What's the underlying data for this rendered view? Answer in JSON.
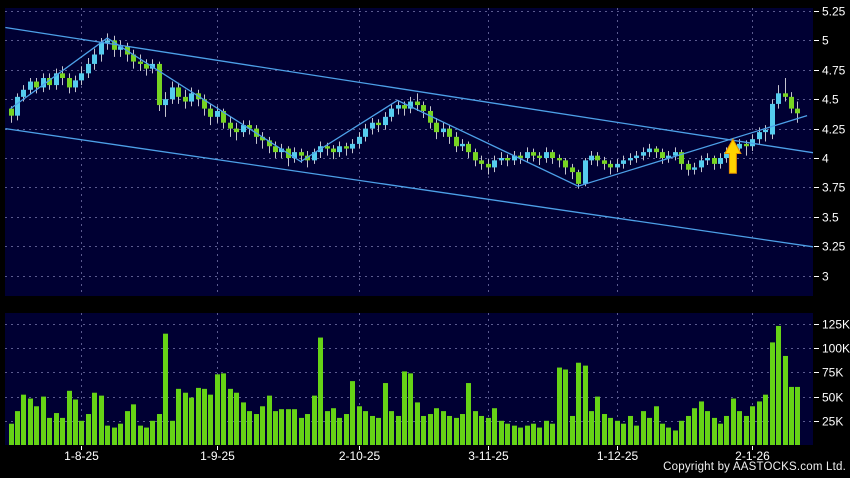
{
  "footer": {
    "copyright": "Copyright by AASTOCKS.com Ltd."
  },
  "colors": {
    "background": "#000000",
    "panel": "#000033",
    "grid": "#5B5B8F",
    "up_candle": "#55CCEE",
    "down_candle": "#77D422",
    "volume_bar": "#66D316",
    "wick": "#C4C4CE",
    "trendline": "#4DA0E8",
    "label": "#FFFFFF",
    "arrow_fill": "#FFD400",
    "arrow_edge": "#E89000"
  },
  "chart_data": {
    "type": "candlestick+volume",
    "title": "",
    "legend": false,
    "grid": "dashed",
    "price_axis": {
      "side": "right",
      "range": [
        2.83,
        5.28
      ],
      "ticks": [
        {
          "label": "5.25",
          "value": 5.25
        },
        {
          "label": "5",
          "value": 5.0
        },
        {
          "label": "4.75",
          "value": 4.75
        },
        {
          "label": "4.5",
          "value": 4.5
        },
        {
          "label": "4.25",
          "value": 4.25
        },
        {
          "label": "4",
          "value": 4.0
        },
        {
          "label": "3.75",
          "value": 3.75
        },
        {
          "label": "3.5",
          "value": 3.5
        },
        {
          "label": "3.25",
          "value": 3.25
        },
        {
          "label": "3",
          "value": 3.0
        }
      ]
    },
    "volume_axis": {
      "side": "right",
      "unit": "K",
      "max_k": 136,
      "ticks": [
        {
          "label": "125K",
          "value": 125
        },
        {
          "label": "100K",
          "value": 100
        },
        {
          "label": "75K",
          "value": 75
        },
        {
          "label": "50K",
          "value": 50
        },
        {
          "label": "25K",
          "value": 25
        }
      ]
    },
    "x_axis": {
      "months": [
        {
          "label": "1-8-25",
          "day": 11
        },
        {
          "label": "1-9-25",
          "day": 32
        },
        {
          "label": "2-10-25",
          "day": 54
        },
        {
          "label": "3-11-25",
          "day": 74
        },
        {
          "label": "1-12-25",
          "day": 94
        },
        {
          "label": "2-1-26",
          "day": 115
        }
      ]
    },
    "candles_format": "[open, high, low, close, volume_thousands]",
    "candles": [
      [
        4.42,
        4.44,
        4.3,
        4.36,
        22
      ],
      [
        4.36,
        4.55,
        4.32,
        4.52,
        35
      ],
      [
        4.52,
        4.62,
        4.48,
        4.58,
        52
      ],
      [
        4.58,
        4.68,
        4.54,
        4.65,
        48
      ],
      [
        4.65,
        4.68,
        4.55,
        4.6,
        40
      ],
      [
        4.6,
        4.72,
        4.56,
        4.68,
        50
      ],
      [
        4.68,
        4.72,
        4.58,
        4.62,
        28
      ],
      [
        4.62,
        4.76,
        4.58,
        4.72,
        33
      ],
      [
        4.72,
        4.78,
        4.62,
        4.68,
        28
      ],
      [
        4.68,
        4.72,
        4.55,
        4.6,
        56
      ],
      [
        4.6,
        4.7,
        4.56,
        4.66,
        47
      ],
      [
        4.66,
        4.78,
        4.62,
        4.72,
        25
      ],
      [
        4.72,
        4.85,
        4.68,
        4.8,
        32
      ],
      [
        4.8,
        4.93,
        4.75,
        4.88,
        54
      ],
      [
        4.88,
        5.02,
        4.82,
        4.98,
        51
      ],
      [
        4.98,
        5.06,
        4.92,
        5.0,
        20
      ],
      [
        5.0,
        5.04,
        4.86,
        4.92,
        18
      ],
      [
        4.92,
        5.0,
        4.86,
        4.95,
        22
      ],
      [
        4.95,
        4.98,
        4.82,
        4.88,
        35
      ],
      [
        4.88,
        4.92,
        4.76,
        4.82,
        42
      ],
      [
        4.82,
        4.88,
        4.74,
        4.8,
        20
      ],
      [
        4.8,
        4.84,
        4.7,
        4.76,
        18
      ],
      [
        4.76,
        4.84,
        4.72,
        4.8,
        25
      ],
      [
        4.8,
        4.82,
        4.4,
        4.45,
        32
      ],
      [
        4.45,
        4.56,
        4.35,
        4.5,
        115
      ],
      [
        4.5,
        4.65,
        4.46,
        4.6,
        25
      ],
      [
        4.6,
        4.64,
        4.46,
        4.52,
        58
      ],
      [
        4.52,
        4.58,
        4.42,
        4.48,
        54
      ],
      [
        4.48,
        4.6,
        4.44,
        4.55,
        49
      ],
      [
        4.55,
        4.58,
        4.44,
        4.5,
        59
      ],
      [
        4.5,
        4.54,
        4.36,
        4.42,
        58
      ],
      [
        4.42,
        4.46,
        4.28,
        4.35,
        52
      ],
      [
        4.35,
        4.44,
        4.3,
        4.4,
        73
      ],
      [
        4.4,
        4.42,
        4.25,
        4.3,
        74
      ],
      [
        4.3,
        4.35,
        4.18,
        4.25,
        58
      ],
      [
        4.25,
        4.3,
        4.15,
        4.22,
        54
      ],
      [
        4.22,
        4.32,
        4.18,
        4.28,
        44
      ],
      [
        4.28,
        4.32,
        4.2,
        4.25,
        35
      ],
      [
        4.25,
        4.28,
        4.12,
        4.18,
        32
      ],
      [
        4.18,
        4.22,
        4.08,
        4.15,
        40
      ],
      [
        4.15,
        4.18,
        4.04,
        4.1,
        51
      ],
      [
        4.1,
        4.14,
        4.0,
        4.05,
        35
      ],
      [
        4.05,
        4.12,
        4.0,
        4.08,
        37
      ],
      [
        4.08,
        4.1,
        3.93,
        4.0,
        37
      ],
      [
        4.0,
        4.09,
        3.96,
        4.05,
        37
      ],
      [
        4.05,
        4.08,
        3.96,
        4.02,
        28
      ],
      [
        4.02,
        4.06,
        3.92,
        3.98,
        32
      ],
      [
        3.98,
        4.08,
        3.95,
        4.05,
        51
      ],
      [
        4.05,
        4.14,
        4.0,
        4.1,
        111
      ],
      [
        4.1,
        4.13,
        4.02,
        4.08,
        35
      ],
      [
        4.08,
        4.11,
        3.99,
        4.05,
        38
      ],
      [
        4.05,
        4.14,
        4.01,
        4.1,
        28
      ],
      [
        4.1,
        4.13,
        4.02,
        4.08,
        32
      ],
      [
        4.08,
        4.16,
        4.04,
        4.12,
        66
      ],
      [
        4.12,
        4.22,
        4.08,
        4.18,
        40
      ],
      [
        4.18,
        4.29,
        4.14,
        4.25,
        35
      ],
      [
        4.25,
        4.34,
        4.2,
        4.3,
        30
      ],
      [
        4.3,
        4.33,
        4.22,
        4.28,
        28
      ],
      [
        4.28,
        4.39,
        4.24,
        4.35,
        64
      ],
      [
        4.35,
        4.46,
        4.31,
        4.42,
        35
      ],
      [
        4.42,
        4.49,
        4.37,
        4.45,
        30
      ],
      [
        4.45,
        4.48,
        4.36,
        4.42,
        76
      ],
      [
        4.42,
        4.52,
        4.38,
        4.48,
        74
      ],
      [
        4.48,
        4.55,
        4.4,
        4.45,
        44
      ],
      [
        4.45,
        4.48,
        4.34,
        4.4,
        30
      ],
      [
        4.4,
        4.44,
        4.25,
        4.3,
        32
      ],
      [
        4.3,
        4.34,
        4.16,
        4.22,
        38
      ],
      [
        4.22,
        4.3,
        4.18,
        4.25,
        35
      ],
      [
        4.25,
        4.28,
        4.12,
        4.18,
        30
      ],
      [
        4.18,
        4.22,
        4.05,
        4.1,
        28
      ],
      [
        4.1,
        4.16,
        4.06,
        4.12,
        32
      ],
      [
        4.12,
        4.14,
        4.0,
        4.05,
        64
      ],
      [
        4.05,
        4.08,
        3.93,
        3.98,
        35
      ],
      [
        3.98,
        4.02,
        3.9,
        3.95,
        30
      ],
      [
        3.95,
        3.99,
        3.86,
        3.92,
        28
      ],
      [
        3.92,
        4.02,
        3.88,
        3.98,
        38
      ],
      [
        3.98,
        4.05,
        3.94,
        4.0,
        25
      ],
      [
        4.0,
        4.03,
        3.93,
        3.98,
        22
      ],
      [
        3.98,
        4.06,
        3.94,
        4.02,
        20
      ],
      [
        4.02,
        4.05,
        3.95,
        4.0,
        18
      ],
      [
        4.0,
        4.09,
        3.96,
        4.05,
        20
      ],
      [
        4.05,
        4.08,
        3.97,
        4.02,
        22
      ],
      [
        4.02,
        4.05,
        3.94,
        4.0,
        18
      ],
      [
        4.0,
        4.09,
        3.96,
        4.05,
        25
      ],
      [
        4.05,
        4.07,
        3.95,
        4.0,
        22
      ],
      [
        4.0,
        4.03,
        3.92,
        3.98,
        80
      ],
      [
        3.98,
        4.0,
        3.86,
        3.92,
        78
      ],
      [
        3.92,
        3.95,
        3.82,
        3.88,
        30
      ],
      [
        3.88,
        3.9,
        3.74,
        3.78,
        85
      ],
      [
        3.78,
        4.0,
        3.76,
        3.98,
        82
      ],
      [
        3.98,
        4.06,
        3.94,
        4.02,
        35
      ],
      [
        4.02,
        4.05,
        3.93,
        3.98,
        50
      ],
      [
        3.98,
        4.01,
        3.9,
        3.95,
        32
      ],
      [
        3.95,
        3.98,
        3.86,
        3.92,
        28
      ],
      [
        3.92,
        3.99,
        3.88,
        3.95,
        25
      ],
      [
        3.95,
        4.02,
        3.91,
        3.98,
        22
      ],
      [
        3.98,
        4.04,
        3.94,
        4.0,
        30
      ],
      [
        4.0,
        4.06,
        3.96,
        4.02,
        20
      ],
      [
        4.02,
        4.09,
        3.98,
        4.05,
        35
      ],
      [
        4.05,
        4.12,
        4.01,
        4.08,
        28
      ],
      [
        4.08,
        4.1,
        4.0,
        4.05,
        40
      ],
      [
        4.05,
        4.08,
        3.95,
        4.0,
        22
      ],
      [
        4.0,
        4.06,
        3.96,
        4.02,
        18
      ],
      [
        4.02,
        4.09,
        3.98,
        4.05,
        15
      ],
      [
        4.05,
        4.07,
        3.9,
        3.95,
        25
      ],
      [
        3.95,
        3.98,
        3.85,
        3.9,
        30
      ],
      [
        3.9,
        3.96,
        3.86,
        3.92,
        38
      ],
      [
        3.92,
        4.02,
        3.88,
        3.98,
        45
      ],
      [
        3.98,
        4.04,
        3.94,
        4.0,
        35
      ],
      [
        4.0,
        4.02,
        3.9,
        3.95,
        28
      ],
      [
        3.95,
        4.04,
        3.91,
        4.0,
        22
      ],
      [
        4.0,
        4.09,
        3.96,
        4.05,
        30
      ],
      [
        4.05,
        4.12,
        4.0,
        4.08,
        48
      ],
      [
        4.08,
        4.16,
        4.04,
        4.12,
        35
      ],
      [
        4.12,
        4.15,
        4.02,
        4.1,
        30
      ],
      [
        4.1,
        4.2,
        4.06,
        4.16,
        40
      ],
      [
        4.16,
        4.26,
        4.12,
        4.22,
        45
      ],
      [
        4.22,
        4.28,
        4.14,
        4.24,
        52
      ],
      [
        4.2,
        4.5,
        4.16,
        4.46,
        106
      ],
      [
        4.46,
        4.62,
        4.42,
        4.55,
        123
      ],
      [
        4.55,
        4.68,
        4.48,
        4.52,
        92
      ],
      [
        4.52,
        4.56,
        4.38,
        4.42,
        60
      ],
      [
        4.42,
        4.48,
        4.3,
        4.38,
        60
      ]
    ],
    "overlays": {
      "upper_trendline": {
        "from": {
          "day": -0.8,
          "price": 5.11
        },
        "to": {
          "day": 125,
          "price": 4.04
        }
      },
      "lower_trendline": {
        "from": {
          "day": -0.8,
          "price": 4.25
        },
        "to": {
          "day": 125,
          "price": 3.24
        }
      },
      "zigzag": [
        {
          "day": 0,
          "price": 4.42
        },
        {
          "day": 15,
          "price": 5.02
        },
        {
          "day": 45,
          "price": 3.97
        },
        {
          "day": 60,
          "price": 4.49
        },
        {
          "day": 88,
          "price": 3.76
        },
        {
          "day": 123.5,
          "price": 4.36
        }
      ],
      "signal_arrow": {
        "day": 112,
        "direction": "up",
        "tip_price": 4.16,
        "base_price": 3.87
      }
    }
  }
}
